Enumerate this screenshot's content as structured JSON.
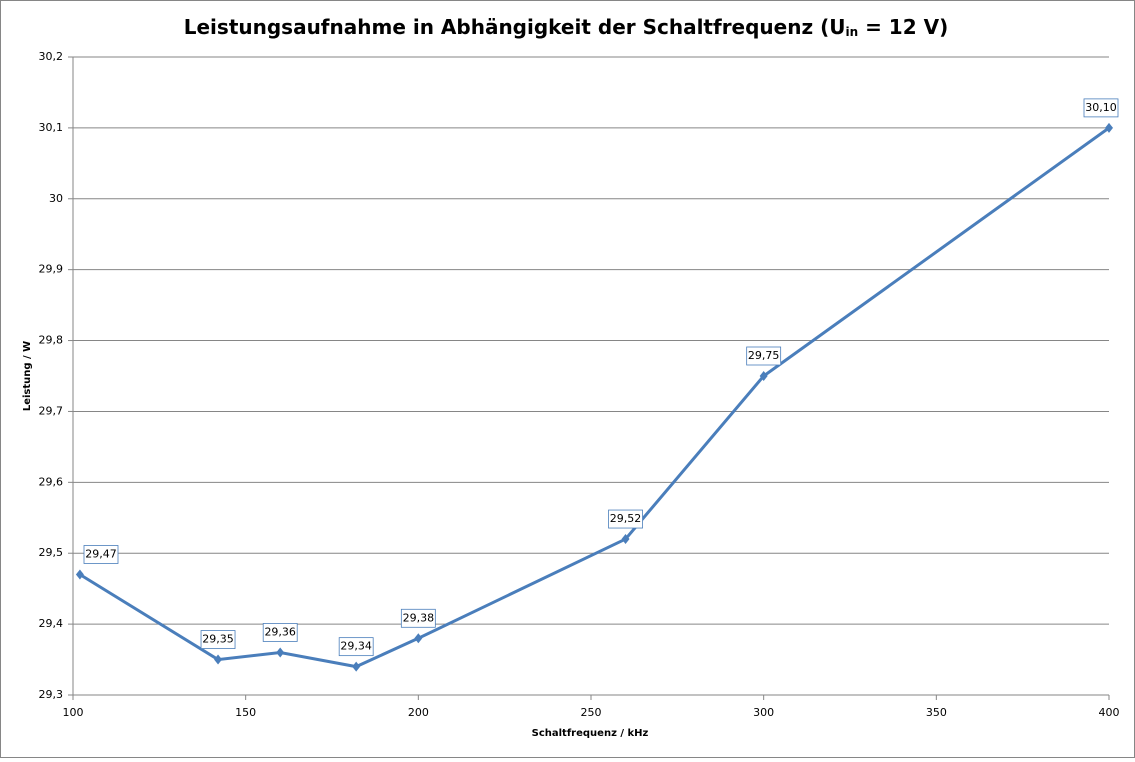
{
  "chart_data": {
    "type": "line",
    "title": [
      "Leistungsaufnahme in Abhängigkeit der Schaltfrequenz (U",
      "in",
      " = 12 V)"
    ],
    "x_label": "Schaltfrequenz  / kHz",
    "y_label": "Leistung / W",
    "x": [
      102,
      142,
      160,
      182,
      200,
      260,
      300,
      400
    ],
    "series": [
      {
        "name": "Leistung",
        "color": "#4a7ebb",
        "values": [
          29.47,
          29.35,
          29.36,
          29.34,
          29.38,
          29.52,
          29.75,
          30.1
        ],
        "value_labels": [
          "29,47",
          "29,35",
          "29,36",
          "29,34",
          "29,38",
          "29,52",
          "29,75",
          "30,10"
        ]
      }
    ],
    "xlim": [
      100,
      400
    ],
    "xticks": [
      100,
      150,
      200,
      250,
      300,
      350,
      400
    ],
    "ylim": [
      29.3,
      30.2
    ],
    "yticks": [
      {
        "value": 29.3,
        "label": "29,3"
      },
      {
        "value": 29.4,
        "label": "29,4"
      },
      {
        "value": 29.5,
        "label": "29,5"
      },
      {
        "value": 29.6,
        "label": "29,6"
      },
      {
        "value": 29.7,
        "label": "29,7"
      },
      {
        "value": 29.8,
        "label": "29,8"
      },
      {
        "value": 29.9,
        "label": "29,9"
      },
      30,
      {
        "value": 30.1,
        "label": "30,1"
      },
      {
        "value": 30.2,
        "label": "30,2"
      }
    ],
    "grid": true
  }
}
